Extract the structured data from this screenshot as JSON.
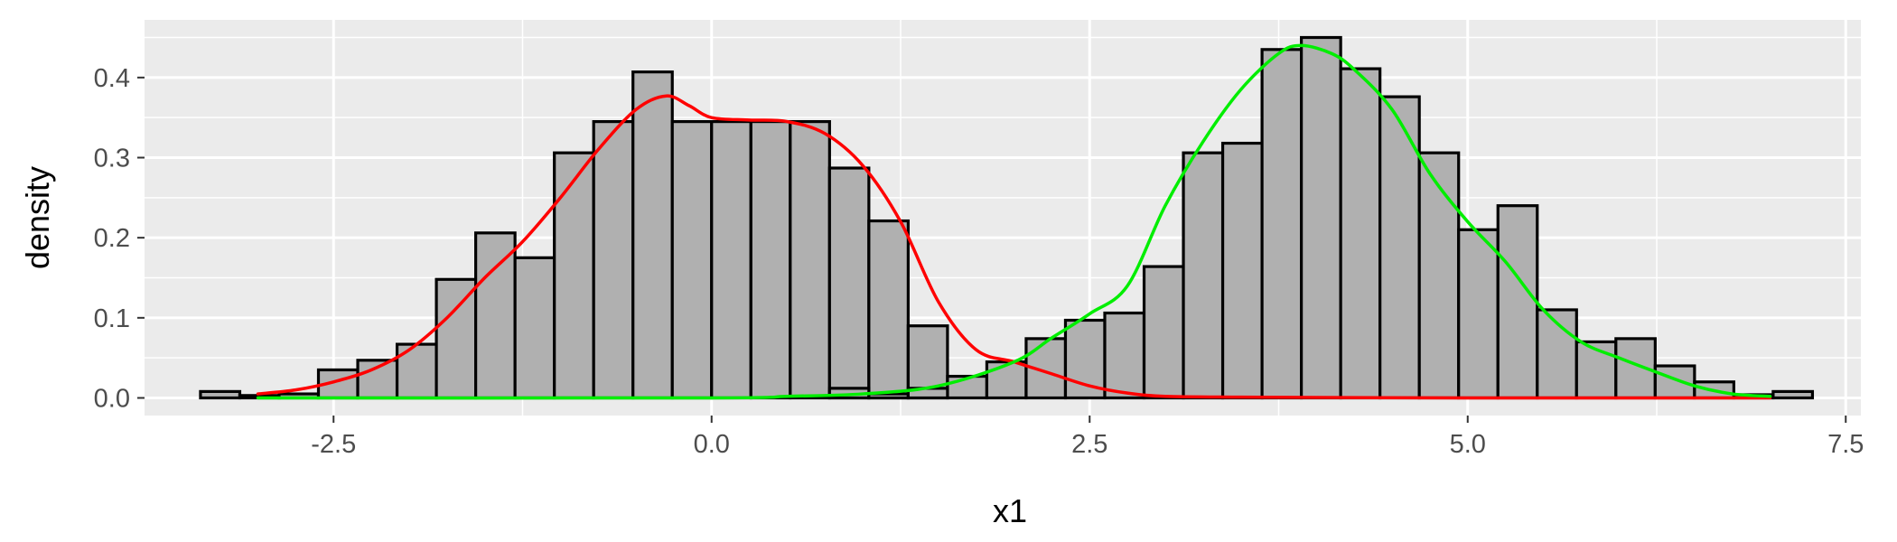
{
  "chart_data": {
    "type": "bar",
    "title": "",
    "xlabel": "x1",
    "ylabel": "density",
    "xlim": [
      -3.75,
      7.6
    ],
    "ylim": [
      -0.022,
      0.472
    ],
    "x_ticks": [
      -2.5,
      0.0,
      2.5,
      5.0,
      7.5
    ],
    "x_tick_labels": [
      "-2.5",
      "0.0",
      "2.5",
      "5.0",
      "7.5"
    ],
    "y_ticks": [
      0.0,
      0.1,
      0.2,
      0.3,
      0.4
    ],
    "y_tick_labels": [
      "0.0",
      "0.1",
      "0.2",
      "0.3",
      "0.4"
    ],
    "grid": true,
    "bin_width": 0.26,
    "bins": [
      {
        "x": -3.25,
        "value": 0.008
      },
      {
        "x": -2.99,
        "value": 0.003
      },
      {
        "x": -2.73,
        "value": 0.005
      },
      {
        "x": -2.47,
        "value": 0.035
      },
      {
        "x": -2.21,
        "value": 0.047
      },
      {
        "x": -1.95,
        "value": 0.067
      },
      {
        "x": -1.69,
        "value": 0.148
      },
      {
        "x": -1.43,
        "value": 0.206
      },
      {
        "x": -1.17,
        "value": 0.175
      },
      {
        "x": -0.91,
        "value": 0.306
      },
      {
        "x": -0.65,
        "value": 0.345
      },
      {
        "x": -0.39,
        "value": 0.407
      },
      {
        "x": -0.13,
        "value": 0.345
      },
      {
        "x": 0.13,
        "value": 0.345
      },
      {
        "x": 0.39,
        "value": 0.345
      },
      {
        "x": 0.65,
        "value": 0.345
      },
      {
        "x": 0.91,
        "value": 0.287
      },
      {
        "x": 1.17,
        "value": 0.221
      },
      {
        "x": 1.43,
        "value": 0.09
      },
      {
        "x": 1.69,
        "value": 0.027
      },
      {
        "x": 1.95,
        "value": 0.045
      },
      {
        "x": 2.21,
        "value": 0.074
      },
      {
        "x": 2.47,
        "value": 0.097
      },
      {
        "x": 2.73,
        "value": 0.106
      },
      {
        "x": 2.99,
        "value": 0.164
      },
      {
        "x": 3.25,
        "value": 0.306
      },
      {
        "x": 3.51,
        "value": 0.318
      },
      {
        "x": 3.77,
        "value": 0.435
      },
      {
        "x": 4.03,
        "value": 0.45
      },
      {
        "x": 4.29,
        "value": 0.411
      },
      {
        "x": 4.55,
        "value": 0.376
      },
      {
        "x": 4.81,
        "value": 0.306
      },
      {
        "x": 5.07,
        "value": 0.21
      },
      {
        "x": 5.33,
        "value": 0.24
      },
      {
        "x": 5.59,
        "value": 0.11
      },
      {
        "x": 5.85,
        "value": 0.07
      },
      {
        "x": 6.11,
        "value": 0.074
      },
      {
        "x": 6.37,
        "value": 0.04
      },
      {
        "x": 6.63,
        "value": 0.02
      },
      {
        "x": 6.89,
        "value": 0.004
      },
      {
        "x": 7.15,
        "value": 0.008
      }
    ],
    "overlay_bins": [
      {
        "x": 0.91,
        "value": 0.012
      },
      {
        "x": 1.17,
        "value": 0.005
      },
      {
        "x": 1.43,
        "value": 0.012
      }
    ],
    "series": [
      {
        "color": "#ff0000",
        "x": [
          -3.0,
          -2.75,
          -2.5,
          -2.25,
          -2.0,
          -1.75,
          -1.5,
          -1.25,
          -1.0,
          -0.75,
          -0.5,
          -0.3,
          -0.15,
          0.0,
          0.25,
          0.5,
          0.75,
          1.0,
          1.25,
          1.5,
          1.75,
          2.0,
          2.25,
          2.5,
          2.75,
          3.0,
          3.5,
          4.0,
          5.0,
          7.0
        ],
        "y": [
          0.005,
          0.01,
          0.02,
          0.035,
          0.06,
          0.1,
          0.15,
          0.195,
          0.25,
          0.31,
          0.36,
          0.377,
          0.365,
          0.35,
          0.347,
          0.345,
          0.33,
          0.29,
          0.22,
          0.12,
          0.06,
          0.045,
          0.03,
          0.015,
          0.006,
          0.002,
          0.001,
          0.0005,
          0.0,
          0.0
        ]
      },
      {
        "color": "#00ee00",
        "x": [
          -3.0,
          0.0,
          0.5,
          1.0,
          1.5,
          2.0,
          2.25,
          2.5,
          2.75,
          3.0,
          3.25,
          3.5,
          3.75,
          3.9,
          4.1,
          4.25,
          4.5,
          4.75,
          5.0,
          5.25,
          5.5,
          5.75,
          6.0,
          6.25,
          6.5,
          6.75,
          7.0
        ],
        "y": [
          0.0,
          0.0,
          0.002,
          0.005,
          0.015,
          0.045,
          0.075,
          0.105,
          0.14,
          0.24,
          0.32,
          0.385,
          0.43,
          0.44,
          0.43,
          0.41,
          0.36,
          0.28,
          0.22,
          0.17,
          0.11,
          0.07,
          0.05,
          0.032,
          0.015,
          0.005,
          0.002
        ]
      }
    ]
  }
}
